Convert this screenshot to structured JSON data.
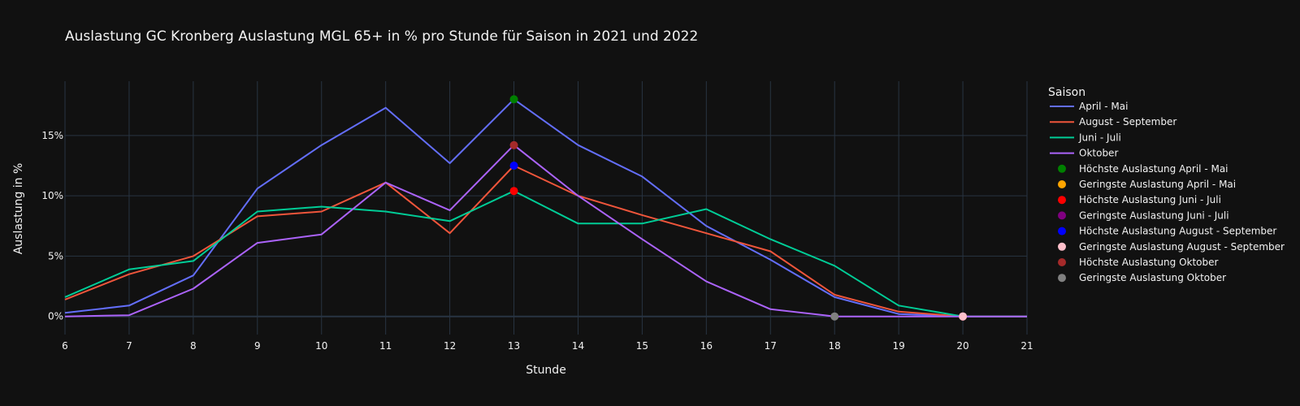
{
  "chart_data": {
    "type": "line",
    "title": "Auslastung GC Kronberg Auslastung MGL 65+ in % pro Stunde für Saison in 2021 und 2022",
    "xlabel": "Stunde",
    "ylabel": "Auslastung in %",
    "x": [
      6,
      7,
      8,
      9,
      10,
      11,
      12,
      13,
      14,
      15,
      16,
      17,
      18,
      19,
      20,
      21
    ],
    "xlim": [
      6,
      21
    ],
    "ylim": [
      -1.5,
      19.5
    ],
    "y_ticks": [
      {
        "value": 0,
        "label": "0%"
      },
      {
        "value": 5,
        "label": "5%"
      },
      {
        "value": 10,
        "label": "10%"
      },
      {
        "value": 15,
        "label": "15%"
      }
    ],
    "grid": true,
    "legend_title": "Saison",
    "legend_position": "right",
    "series": [
      {
        "name": "April - Mai",
        "color": "#636efa",
        "values": [
          0.3,
          0.9,
          3.4,
          10.6,
          14.2,
          17.3,
          12.7,
          18.0,
          14.2,
          11.6,
          7.5,
          4.7,
          1.6,
          0.2,
          0.0,
          0.0
        ]
      },
      {
        "name": "August - September",
        "color": "#ef553b",
        "values": [
          1.4,
          3.5,
          5.0,
          8.3,
          8.7,
          11.1,
          6.9,
          12.5,
          10.0,
          8.4,
          6.9,
          5.4,
          1.8,
          0.4,
          0.0,
          0.0
        ]
      },
      {
        "name": "Juni - Juli",
        "color": "#00cc96",
        "values": [
          1.6,
          3.9,
          4.6,
          8.7,
          9.1,
          8.7,
          7.9,
          10.4,
          7.7,
          7.7,
          8.9,
          6.4,
          4.2,
          0.9,
          0.0,
          0.0
        ]
      },
      {
        "name": "Oktober",
        "color": "#ab63fa",
        "values": [
          0.0,
          0.1,
          2.3,
          6.1,
          6.8,
          11.1,
          8.8,
          14.2,
          10.0,
          6.4,
          2.9,
          0.6,
          0.0,
          0.0,
          0.0,
          0.0
        ]
      }
    ],
    "markers": [
      {
        "name": "Höchste Auslastung April - Mai",
        "color": "#008000",
        "x": 13,
        "y": 18.0
      },
      {
        "name": "Geringste Auslastung April - Mai",
        "color": "#ffa500",
        "x": 20,
        "y": 0.0
      },
      {
        "name": "Höchste Auslastung Juni - Juli",
        "color": "#ff0000",
        "x": 13,
        "y": 10.4
      },
      {
        "name": "Geringste Auslastung Juni - Juli",
        "color": "#800080",
        "x": 20,
        "y": 0.0
      },
      {
        "name": "Höchste Auslastung August - September",
        "color": "#0000ff",
        "x": 13,
        "y": 12.5
      },
      {
        "name": "Geringste Auslastung August - September",
        "color": "#ffc0cb",
        "x": 20,
        "y": 0.0
      },
      {
        "name": "Höchste Auslastung Oktober",
        "color": "#a52a2a",
        "x": 13,
        "y": 14.2
      },
      {
        "name": "Geringste Auslastung Oktober",
        "color": "#808080",
        "x": 18,
        "y": 0.0
      }
    ]
  },
  "colors": {
    "background": "#111111",
    "grid": "#283442",
    "text": "#f2f2f2"
  }
}
